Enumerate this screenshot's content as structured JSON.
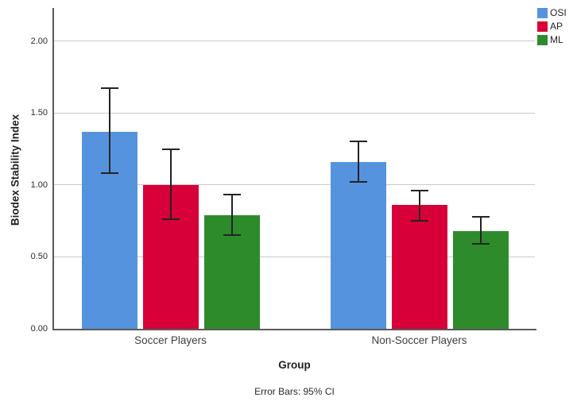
{
  "chart_data": {
    "type": "bar",
    "title": "",
    "categories": [
      "Soccer Players",
      "Non-Soccer Players"
    ],
    "series": [
      {
        "name": "OSI",
        "color": "#5693DE",
        "values": [
          1.37,
          1.16
        ],
        "ci_low": [
          1.08,
          1.02
        ],
        "ci_high": [
          1.67,
          1.3
        ]
      },
      {
        "name": "AP",
        "color": "#D80038",
        "values": [
          1.0,
          0.86
        ],
        "ci_low": [
          0.76,
          0.75
        ],
        "ci_high": [
          1.25,
          0.96
        ]
      },
      {
        "name": "ML",
        "color": "#2E8B2B",
        "values": [
          0.79,
          0.68
        ],
        "ci_low": [
          0.65,
          0.59
        ],
        "ci_high": [
          0.93,
          0.78
        ]
      }
    ],
    "xlabel": "Group",
    "ylabel": "Biodex Stability Index",
    "yticks": [
      0.0,
      0.5,
      1.0,
      1.5,
      2.0
    ],
    "ytick_labels": [
      "0.00",
      "0.50",
      "1.00",
      "1.50",
      "2.00"
    ],
    "ylim": [
      0.0,
      2.23
    ],
    "grid": "horizontal",
    "legend_position": "top-right",
    "error_bars": "95% CI",
    "footnote": "Error Bars: 95% CI",
    "colors": {
      "axis": "#5a5a5a",
      "gridline": "#c9c9c9",
      "error_bar": "#232323",
      "background": "#ffffff"
    }
  }
}
